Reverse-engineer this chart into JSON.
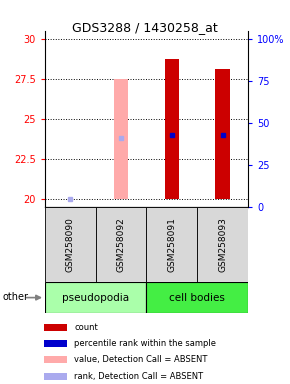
{
  "title": "GDS3288 / 1430258_at",
  "samples": [
    "GSM258090",
    "GSM258092",
    "GSM258091",
    "GSM258093"
  ],
  "ylim_left": [
    19.5,
    30.5
  ],
  "ylim_right": [
    0,
    105
  ],
  "yticks_left": [
    20,
    22.5,
    25,
    27.5,
    30
  ],
  "yticks_right": [
    0,
    25,
    50,
    75,
    100
  ],
  "count_color": "#cc0000",
  "rank_color": "#0000cc",
  "absent_value_color": "#ffaaaa",
  "absent_rank_color": "#aaaaee",
  "bars": [
    {
      "x": 0,
      "count_val": null,
      "rank_val": 20.0,
      "absent": true
    },
    {
      "x": 1,
      "count_val": 27.5,
      "rank_val": 23.85,
      "absent": true
    },
    {
      "x": 2,
      "count_val": 28.75,
      "rank_val": 24.0,
      "absent": false
    },
    {
      "x": 3,
      "count_val": 28.1,
      "rank_val": 24.0,
      "absent": false
    }
  ],
  "bar_bottom": 20.0,
  "bar_width": 0.28,
  "group_pseudopodia_color": "#aaffaa",
  "group_cell_bodies_color": "#44ee44",
  "legend_items": [
    {
      "color": "#cc0000",
      "label": "count"
    },
    {
      "color": "#0000cc",
      "label": "percentile rank within the sample"
    },
    {
      "color": "#ffaaaa",
      "label": "value, Detection Call = ABSENT"
    },
    {
      "color": "#aaaaee",
      "label": "rank, Detection Call = ABSENT"
    }
  ]
}
